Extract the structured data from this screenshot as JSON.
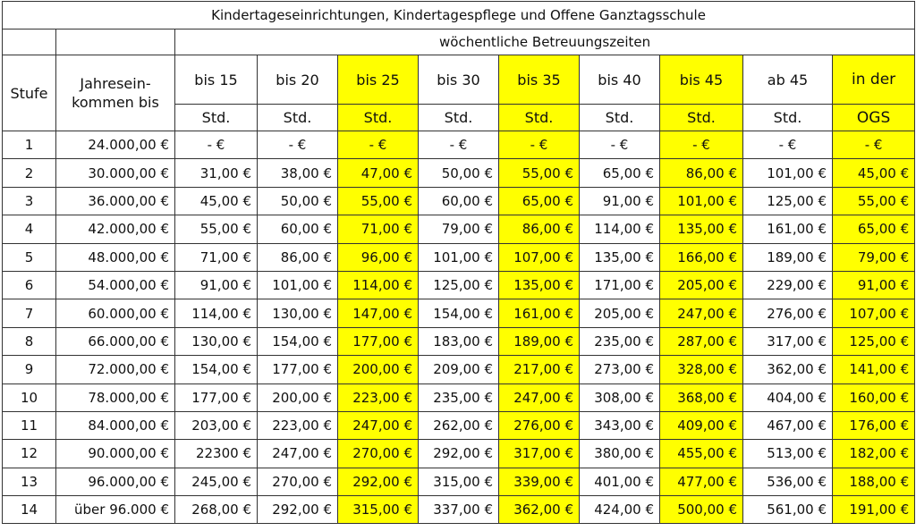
{
  "table": {
    "title": "Kindertageseinrichtungen, Kindertagespflege und Offene Ganztagsschule",
    "group_header": "wöchentliche Betreuungszeiten",
    "stufe_header": "Stufe",
    "income_header": [
      "Jahresein-",
      "kommen bis"
    ],
    "columns": [
      {
        "top": "bis 15",
        "bottom": "Std.",
        "highlight": false
      },
      {
        "top": "bis 20",
        "bottom": "Std.",
        "highlight": false
      },
      {
        "top": "bis 25",
        "bottom": "Std.",
        "highlight": true
      },
      {
        "top": "bis 30",
        "bottom": "Std.",
        "highlight": false
      },
      {
        "top": "bis 35",
        "bottom": "Std.",
        "highlight": true
      },
      {
        "top": "bis 40",
        "bottom": "Std.",
        "highlight": false
      },
      {
        "top": "bis 45",
        "bottom": "Std.",
        "highlight": true
      },
      {
        "top": "ab 45",
        "bottom": "Std.",
        "highlight": false
      },
      {
        "top": "in der",
        "bottom": "OGS",
        "highlight": true
      }
    ],
    "highlight_color": "#ffff00",
    "rows": [
      [
        "1",
        "24.000,00 €",
        "- €",
        "- €",
        "- €",
        "- €",
        "- €",
        "- €",
        "- €",
        "- €",
        "- €"
      ],
      [
        "2",
        "30.000,00 €",
        "31,00 €",
        "38,00 €",
        "47,00 €",
        "50,00 €",
        "55,00 €",
        "65,00 €",
        "86,00 €",
        "101,00 €",
        "45,00 €"
      ],
      [
        "3",
        "36.000,00 €",
        "45,00 €",
        "50,00 €",
        "55,00 €",
        "60,00 €",
        "65,00 €",
        "91,00 €",
        "101,00 €",
        "125,00 €",
        "55,00 €"
      ],
      [
        "4",
        "42.000,00 €",
        "55,00 €",
        "60,00 €",
        "71,00 €",
        "79,00 €",
        "86,00 €",
        "114,00 €",
        "135,00 €",
        "161,00 €",
        "65,00 €"
      ],
      [
        "5",
        "48.000,00 €",
        "71,00 €",
        "86,00 €",
        "96,00 €",
        "101,00 €",
        "107,00 €",
        "135,00 €",
        "166,00 €",
        "189,00 €",
        "79,00 €"
      ],
      [
        "6",
        "54.000,00 €",
        "91,00 €",
        "101,00 €",
        "114,00 €",
        "125,00 €",
        "135,00 €",
        "171,00 €",
        "205,00 €",
        "229,00 €",
        "91,00 €"
      ],
      [
        "7",
        "60.000,00 €",
        "114,00 €",
        "130,00 €",
        "147,00 €",
        "154,00 €",
        "161,00 €",
        "205,00 €",
        "247,00 €",
        "276,00 €",
        "107,00 €"
      ],
      [
        "8",
        "66.000,00 €",
        "130,00 €",
        "154,00 €",
        "177,00 €",
        "183,00 €",
        "189,00 €",
        "235,00 €",
        "287,00 €",
        "317,00 €",
        "125,00 €"
      ],
      [
        "9",
        "72.000,00 €",
        "154,00 €",
        "177,00 €",
        "200,00 €",
        "209,00 €",
        "217,00 €",
        "273,00 €",
        "328,00 €",
        "362,00 €",
        "141,00 €"
      ],
      [
        "10",
        "78.000,00 €",
        "177,00 €",
        "200,00 €",
        "223,00 €",
        "235,00 €",
        "247,00 €",
        "308,00 €",
        "368,00 €",
        "404,00 €",
        "160,00 €"
      ],
      [
        "11",
        "84.000,00 €",
        "203,00 €",
        "223,00 €",
        "247,00 €",
        "262,00 €",
        "276,00 €",
        "343,00 €",
        "409,00 €",
        "467,00 €",
        "176,00 €"
      ],
      [
        "12",
        "90.000,00 €",
        "22300 €",
        "247,00 €",
        "270,00 €",
        "292,00 €",
        "317,00 €",
        "380,00 €",
        "455,00 €",
        "513,00 €",
        "182,00 €"
      ],
      [
        "13",
        "96.000,00 €",
        "245,00 €",
        "270,00 €",
        "292,00 €",
        "315,00 €",
        "339,00 €",
        "401,00 €",
        "477,00 €",
        "536,00 €",
        "188,00 €"
      ],
      [
        "14",
        "über 96.000 €",
        "268,00 €",
        "292,00 €",
        "315,00 €",
        "337,00 €",
        "362,00 €",
        "424,00 €",
        "500,00 €",
        "561,00 €",
        "191,00 €"
      ]
    ]
  }
}
